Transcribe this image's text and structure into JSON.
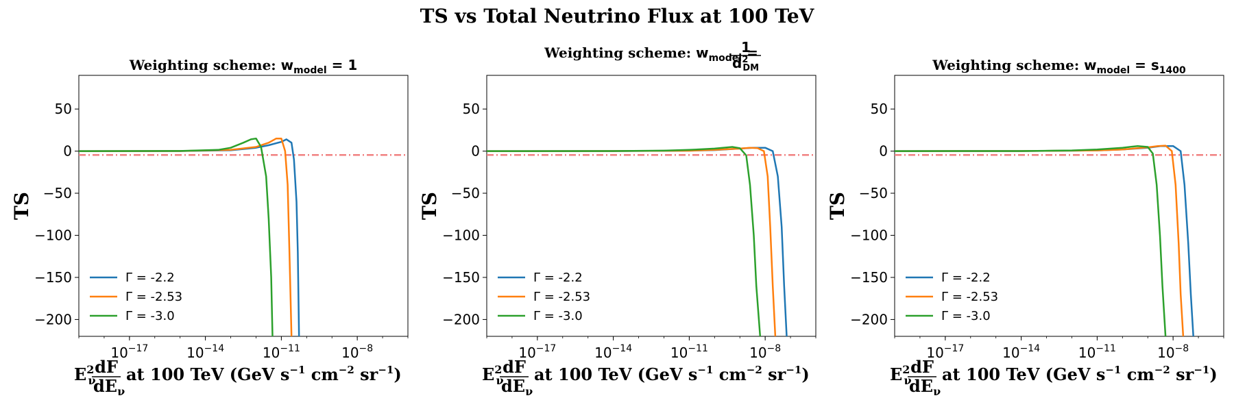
{
  "figure": {
    "title": "TS vs Total Neutrino Flux at 100 TeV"
  },
  "colors": {
    "series": [
      "#1f77b4",
      "#ff7f0e",
      "#2ca02c"
    ],
    "threshold": "#f08080"
  },
  "chart_data": [
    {
      "type": "line",
      "title_prefix": "Weighting scheme:",
      "title_math": "w_model = 1",
      "xlabel": "E_ν² dF/dE_ν at 100 TeV (GeV s⁻¹ cm⁻² sr⁻¹)",
      "ylabel": "TS",
      "xscale": "log",
      "xlim": [
        1e-19,
        1e-06
      ],
      "ylim": [
        -220,
        90
      ],
      "yticks": [
        50,
        0,
        -50,
        -100,
        -150,
        -200
      ],
      "xtick_exponents": [
        -17,
        -14,
        -11,
        -8
      ],
      "threshold_y": -4.6,
      "legend_position": "lower-left",
      "series": [
        {
          "name": "Γ = -2.2",
          "log10_x": [
            -19,
            -15,
            -13,
            -12,
            -11.5,
            -11,
            -10.8,
            -10.6,
            -10.5,
            -10.4,
            -10.35,
            -10.3
          ],
          "y": [
            0,
            0.1,
            1.0,
            4,
            7,
            11,
            14,
            10,
            -10,
            -60,
            -120,
            -220
          ]
        },
        {
          "name": "Γ = -2.53",
          "log10_x": [
            -19,
            -15,
            -13,
            -12,
            -11.5,
            -11.2,
            -11.0,
            -10.85,
            -10.75,
            -10.68,
            -10.6
          ],
          "y": [
            0,
            0.1,
            1.5,
            5,
            10,
            15,
            15,
            0,
            -40,
            -120,
            -220
          ]
        },
        {
          "name": "Γ = -3.0",
          "log10_x": [
            -19,
            -15,
            -13.5,
            -13,
            -12.5,
            -12.2,
            -12.0,
            -11.8,
            -11.6,
            -11.5,
            -11.4,
            -11.35
          ],
          "y": [
            0,
            0.2,
            1.5,
            4,
            10,
            14,
            15,
            5,
            -30,
            -80,
            -150,
            -220
          ]
        }
      ]
    },
    {
      "type": "line",
      "title_prefix": "Weighting scheme:",
      "title_math": "w_model = 1 / d_DM²",
      "xlabel": "E_ν² dF/dE_ν at 100 TeV (GeV s⁻¹ cm⁻² sr⁻¹)",
      "ylabel": "TS",
      "xscale": "log",
      "xlim": [
        1e-19,
        1e-06
      ],
      "ylim": [
        -220,
        90
      ],
      "yticks": [
        50,
        0,
        -50,
        -100,
        -150,
        -200
      ],
      "xtick_exponents": [
        -17,
        -14,
        -11,
        -8
      ],
      "threshold_y": -4.6,
      "legend_position": "lower-left",
      "series": [
        {
          "name": "Γ = -2.2",
          "log10_x": [
            -19,
            -14,
            -11,
            -10,
            -9,
            -8.5,
            -8.0,
            -7.7,
            -7.5,
            -7.35,
            -7.25,
            -7.15
          ],
          "y": [
            0,
            0.1,
            0.5,
            1.2,
            3,
            4,
            4,
            0,
            -30,
            -90,
            -160,
            -220
          ]
        },
        {
          "name": "Γ = -2.53",
          "log10_x": [
            -19,
            -14,
            -11,
            -10,
            -9,
            -8.6,
            -8.3,
            -8.05,
            -7.9,
            -7.8,
            -7.7,
            -7.6
          ],
          "y": [
            0,
            0.1,
            0.5,
            1.5,
            3,
            4,
            3.5,
            0,
            -30,
            -90,
            -160,
            -220
          ]
        },
        {
          "name": "Γ = -3.0",
          "log10_x": [
            -19,
            -14,
            -12,
            -11,
            -10,
            -9.3,
            -9.0,
            -8.75,
            -8.6,
            -8.45,
            -8.35,
            -8.2
          ],
          "y": [
            0,
            0.1,
            0.6,
            1.5,
            3,
            5,
            3.5,
            -5,
            -40,
            -100,
            -160,
            -220
          ]
        }
      ]
    },
    {
      "type": "line",
      "title_prefix": "Weighting scheme:",
      "title_math": "w_model = s_1400",
      "xlabel": "E_ν² dF/dE_ν at 100 TeV (GeV s⁻¹ cm⁻² sr⁻¹)",
      "ylabel": "TS",
      "xscale": "log",
      "xlim": [
        1e-19,
        1e-06
      ],
      "ylim": [
        -220,
        90
      ],
      "yticks": [
        50,
        0,
        -50,
        -100,
        -150,
        -200
      ],
      "xtick_exponents": [
        -17,
        -14,
        -11,
        -8
      ],
      "threshold_y": -4.6,
      "legend_position": "lower-left",
      "series": [
        {
          "name": "Γ = -2.2",
          "log10_x": [
            -19,
            -14,
            -11,
            -10,
            -9,
            -8.5,
            -8.0,
            -7.7,
            -7.55,
            -7.4,
            -7.3,
            -7.2
          ],
          "y": [
            0,
            0.1,
            0.8,
            2,
            4,
            6,
            6,
            0,
            -40,
            -110,
            -170,
            -220
          ]
        },
        {
          "name": "Γ = -2.53",
          "log10_x": [
            -19,
            -14,
            -11,
            -10,
            -9,
            -8.6,
            -8.3,
            -8.05,
            -7.9,
            -7.78,
            -7.7,
            -7.6
          ],
          "y": [
            0,
            0.1,
            0.8,
            2,
            4.5,
            6,
            6.5,
            0,
            -40,
            -110,
            -170,
            -220
          ]
        },
        {
          "name": "Γ = -3.0",
          "log10_x": [
            -19,
            -14,
            -12,
            -11,
            -10,
            -9.4,
            -9.0,
            -8.8,
            -8.65,
            -8.52,
            -8.42,
            -8.3
          ],
          "y": [
            0,
            0.1,
            0.8,
            2,
            4,
            6,
            5,
            -3,
            -40,
            -100,
            -160,
            -220
          ]
        }
      ]
    }
  ]
}
